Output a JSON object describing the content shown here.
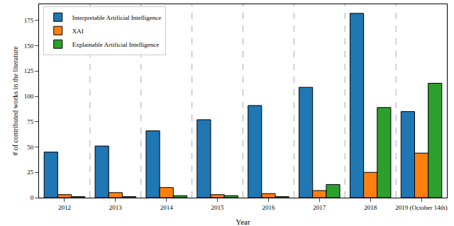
{
  "chart_data": {
    "type": "bar",
    "x_label": "Year",
    "y_label": "# of contributed works in the literature",
    "categories": [
      "2012",
      "2013",
      "2014",
      "2015",
      "2016",
      "2017",
      "2018",
      "2019 (October 14th)"
    ],
    "series": [
      {
        "name": "Interpretable Artificial Intelligence",
        "color": "#1f77b4",
        "values": [
          45,
          51,
          66,
          77,
          91,
          109,
          182,
          85
        ]
      },
      {
        "name": "XAI",
        "color": "#ff7f0e",
        "values": [
          3,
          5,
          10,
          3,
          4,
          7,
          25,
          44
        ]
      },
      {
        "name": "Explainable Artificial Intelligence",
        "color": "#2ca02c",
        "values": [
          1,
          1,
          2,
          2,
          1,
          13,
          89,
          113
        ]
      }
    ],
    "ylim": [
      0,
      191
    ],
    "yticks": [
      0,
      25,
      50,
      75,
      100,
      125,
      150,
      175
    ],
    "grid": true,
    "legend": "upper left"
  }
}
